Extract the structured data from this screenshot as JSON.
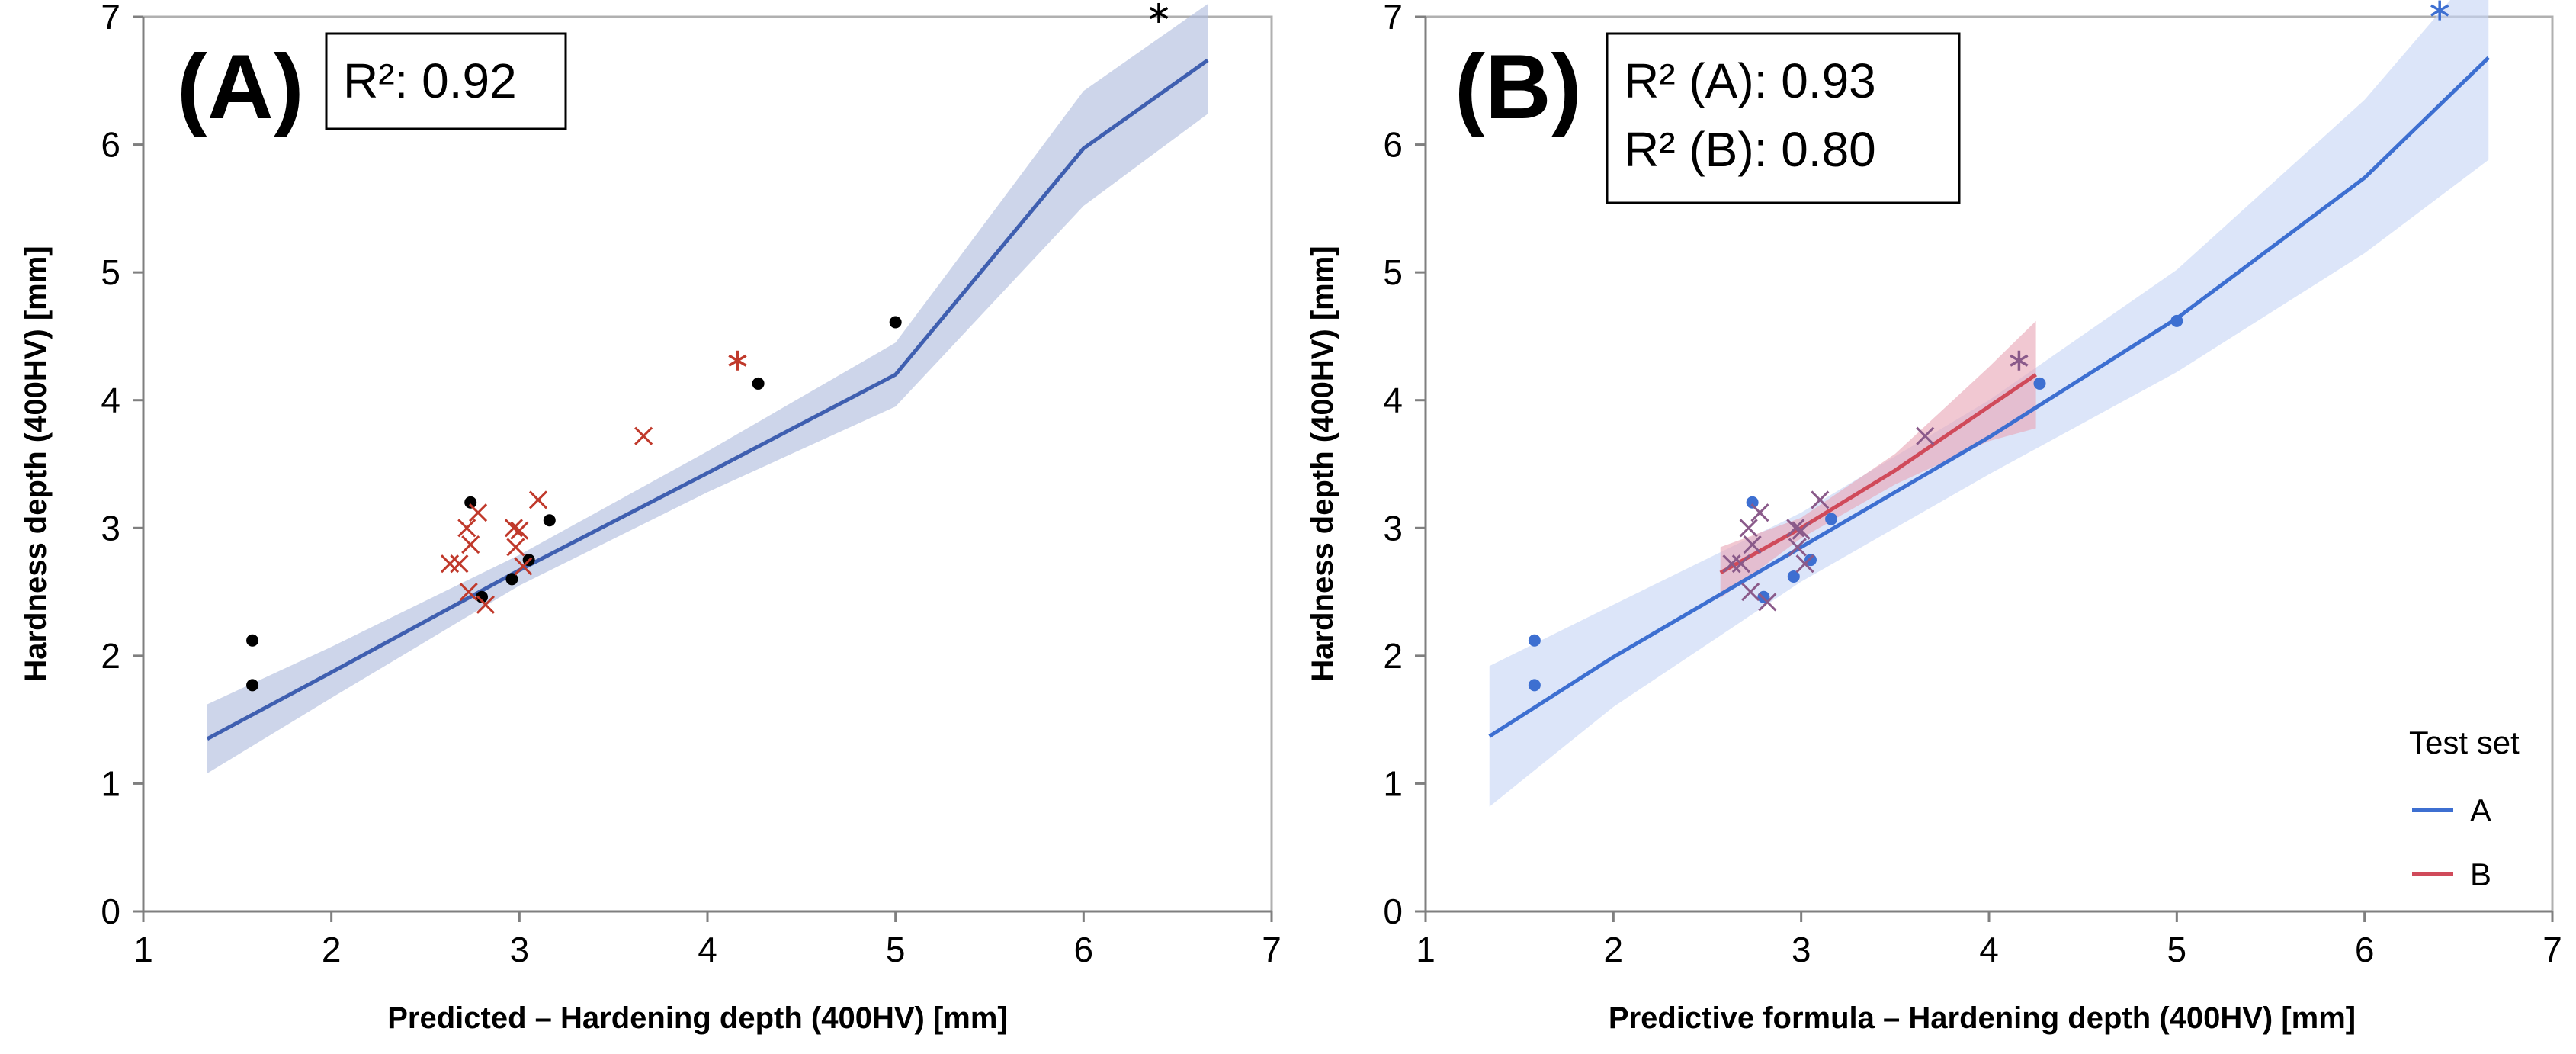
{
  "chart_data": [
    {
      "type": "scatter",
      "panel_label": "(A)",
      "stat_box": [
        "R²: 0.92"
      ],
      "xlabel": "Predicted – Hardening depth (400HV) [mm]",
      "ylabel": "Hardness depth (400HV) [mm]",
      "xlim": [
        1,
        7
      ],
      "ylim": [
        0,
        7
      ],
      "xticks": [
        "1",
        "2",
        "3",
        "4",
        "5",
        "6",
        "7"
      ],
      "yticks": [
        "0",
        "1",
        "2",
        "3",
        "4",
        "5",
        "6",
        "7"
      ],
      "grid": false,
      "series": [
        {
          "marker": "dot",
          "color": "#000000",
          "points": [
            [
              1.58,
              2.12
            ],
            [
              1.58,
              1.77
            ],
            [
              2.74,
              3.2
            ],
            [
              2.8,
              2.46
            ],
            [
              2.96,
              2.6
            ],
            [
              3.05,
              2.75
            ],
            [
              3.16,
              3.06
            ],
            [
              4.27,
              4.13
            ],
            [
              5.0,
              4.61
            ]
          ]
        },
        {
          "marker": "x",
          "color": "#c0392b",
          "points": [
            [
              2.63,
              2.72
            ],
            [
              2.68,
              2.72
            ],
            [
              2.72,
              3.0
            ],
            [
              2.73,
              2.5
            ],
            [
              2.74,
              2.87
            ],
            [
              2.78,
              3.12
            ],
            [
              2.82,
              2.4
            ],
            [
              2.97,
              3.0
            ],
            [
              2.98,
              2.85
            ],
            [
              3.0,
              2.98
            ],
            [
              3.02,
              2.7
            ],
            [
              3.1,
              3.22
            ],
            [
              3.66,
              3.72
            ]
          ]
        },
        {
          "marker": "asterisk",
          "color": "#c0392b",
          "points": [
            [
              4.16,
              4.31
            ]
          ]
        },
        {
          "marker": "asterisk",
          "color": "#000000",
          "points": [
            [
              6.4,
              7.03
            ]
          ]
        }
      ],
      "fits": [
        {
          "color": "#3f5fb0",
          "band_color": "#aebbdd",
          "x": [
            1.34,
            2.0,
            3.0,
            4.0,
            5.0,
            6.0,
            6.66
          ],
          "y": [
            1.35,
            1.87,
            2.67,
            3.43,
            4.2,
            5.97,
            6.66
          ],
          "band_low": [
            1.08,
            1.67,
            2.55,
            3.28,
            3.95,
            5.52,
            6.24
          ],
          "band_high": [
            1.62,
            2.07,
            2.79,
            3.6,
            4.45,
            6.42,
            7.1
          ]
        }
      ]
    },
    {
      "type": "scatter",
      "panel_label": "(B)",
      "stat_box": [
        "R² (A): 0.93",
        "R² (B): 0.80"
      ],
      "xlabel": "Predictive formula – Hardening depth (400HV) [mm]",
      "ylabel": "Hardness depth (400HV) [mm]",
      "xlim": [
        1,
        7
      ],
      "ylim": [
        0,
        7
      ],
      "xticks": [
        "1",
        "2",
        "3",
        "4",
        "5",
        "6",
        "7"
      ],
      "yticks": [
        "0",
        "1",
        "2",
        "3",
        "4",
        "5",
        "6",
        "7"
      ],
      "grid": false,
      "legend": {
        "title": "Test set",
        "position": "bottom-right",
        "entries": [
          {
            "name": "A",
            "color": "#3d6fd1"
          },
          {
            "name": "B",
            "color": "#d04a5a"
          }
        ]
      },
      "series": [
        {
          "marker": "dot",
          "color": "#3d6fd1",
          "points": [
            [
              1.58,
              2.12
            ],
            [
              1.58,
              1.77
            ],
            [
              2.74,
              3.2
            ],
            [
              2.8,
              2.46
            ],
            [
              2.96,
              2.62
            ],
            [
              3.05,
              2.75
            ],
            [
              3.16,
              3.07
            ],
            [
              4.27,
              4.13
            ],
            [
              5.0,
              4.62
            ]
          ]
        },
        {
          "marker": "x",
          "color": "#8a5a8a",
          "points": [
            [
              2.63,
              2.72
            ],
            [
              2.68,
              2.72
            ],
            [
              2.72,
              3.0
            ],
            [
              2.73,
              2.5
            ],
            [
              2.74,
              2.87
            ],
            [
              2.78,
              3.12
            ],
            [
              2.82,
              2.42
            ],
            [
              2.97,
              3.0
            ],
            [
              2.98,
              2.85
            ],
            [
              3.0,
              2.98
            ],
            [
              3.02,
              2.72
            ],
            [
              3.1,
              3.22
            ],
            [
              3.66,
              3.72
            ]
          ]
        },
        {
          "marker": "asterisk",
          "color": "#8a5a8a",
          "points": [
            [
              4.16,
              4.31
            ]
          ]
        },
        {
          "marker": "asterisk",
          "color": "#3d6fd1",
          "points": [
            [
              6.4,
              7.05
            ]
          ]
        }
      ],
      "fits": [
        {
          "name": "A",
          "color": "#3d6fd1",
          "band_color": "#c7d5f5",
          "x": [
            1.34,
            2.0,
            3.0,
            4.0,
            5.0,
            6.0,
            6.66
          ],
          "y": [
            1.37,
            1.99,
            2.85,
            3.71,
            4.64,
            5.74,
            6.68
          ],
          "band_low": [
            0.82,
            1.6,
            2.58,
            3.42,
            4.22,
            5.15,
            5.88
          ],
          "band_high": [
            1.92,
            2.4,
            3.12,
            4.0,
            5.02,
            6.35,
            7.48
          ]
        },
        {
          "name": "B",
          "color": "#d04a5a",
          "band_color": "#e8a6b6",
          "x": [
            2.57,
            3.0,
            3.5,
            4.0,
            4.25
          ],
          "y": [
            2.65,
            3.0,
            3.45,
            3.95,
            4.2
          ],
          "band_low": [
            2.45,
            2.92,
            3.34,
            3.68,
            3.78
          ],
          "band_high": [
            2.85,
            3.08,
            3.58,
            4.26,
            4.62
          ]
        }
      ]
    }
  ]
}
